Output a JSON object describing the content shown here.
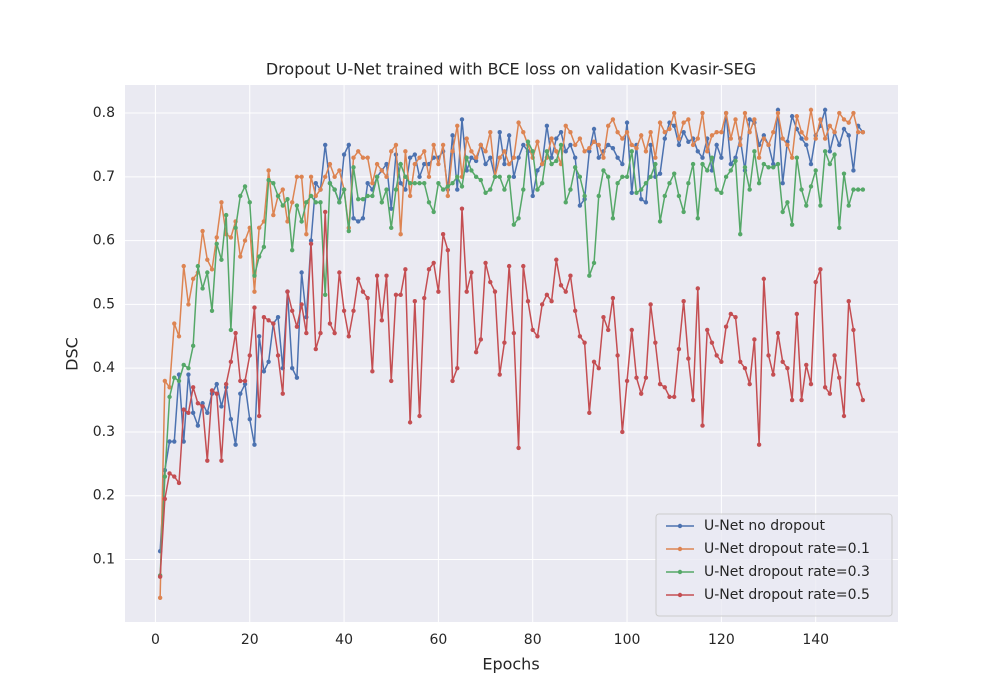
{
  "chart_data": {
    "type": "line",
    "title": "Dropout U-Net trained with BCE loss on validation Kvasir-SEG",
    "x_label": "Epochs",
    "y_label": "DSC",
    "x": [
      1,
      2,
      3,
      4,
      5,
      6,
      7,
      8,
      9,
      10,
      11,
      12,
      13,
      14,
      15,
      16,
      17,
      18,
      19,
      20,
      21,
      22,
      23,
      24,
      25,
      26,
      27,
      28,
      29,
      30,
      31,
      32,
      33,
      34,
      35,
      36,
      37,
      38,
      39,
      40,
      41,
      42,
      43,
      44,
      45,
      46,
      47,
      48,
      49,
      50,
      51,
      52,
      53,
      54,
      55,
      56,
      57,
      58,
      59,
      60,
      61,
      62,
      63,
      64,
      65,
      66,
      67,
      68,
      69,
      70,
      71,
      72,
      73,
      74,
      75,
      76,
      77,
      78,
      79,
      80,
      81,
      82,
      83,
      84,
      85,
      86,
      87,
      88,
      89,
      90,
      91,
      92,
      93,
      94,
      95,
      96,
      97,
      98,
      99,
      100,
      101,
      102,
      103,
      104,
      105,
      106,
      107,
      108,
      109,
      110,
      111,
      112,
      113,
      114,
      115,
      116,
      117,
      118,
      119,
      120,
      121,
      122,
      123,
      124,
      125,
      126,
      127,
      128,
      129,
      130,
      131,
      132,
      133,
      134,
      135,
      136,
      137,
      138,
      139,
      140,
      141,
      142,
      143,
      144,
      145,
      146,
      147,
      148,
      149,
      150
    ],
    "series": [
      {
        "name": "U-Net no dropout",
        "color": "#4c72b0",
        "values": [
          0.113,
          0.24,
          0.285,
          0.285,
          0.39,
          0.285,
          0.39,
          0.33,
          0.31,
          0.345,
          0.33,
          0.36,
          0.375,
          0.34,
          0.37,
          0.32,
          0.28,
          0.36,
          0.375,
          0.32,
          0.28,
          0.45,
          0.395,
          0.41,
          0.47,
          0.48,
          0.4,
          0.52,
          0.4,
          0.385,
          0.55,
          0.48,
          0.6,
          0.69,
          0.68,
          0.75,
          0.69,
          0.68,
          0.66,
          0.735,
          0.75,
          0.635,
          0.63,
          0.635,
          0.69,
          0.68,
          0.7,
          0.71,
          0.72,
          0.65,
          0.735,
          0.69,
          0.68,
          0.73,
          0.735,
          0.7,
          0.72,
          0.72,
          0.73,
          0.73,
          0.74,
          0.68,
          0.765,
          0.68,
          0.79,
          0.71,
          0.73,
          0.725,
          0.75,
          0.72,
          0.73,
          0.7,
          0.77,
          0.72,
          0.765,
          0.7,
          0.73,
          0.75,
          0.74,
          0.67,
          0.71,
          0.72,
          0.78,
          0.73,
          0.76,
          0.77,
          0.74,
          0.75,
          0.73,
          0.655,
          0.665,
          0.74,
          0.775,
          0.73,
          0.74,
          0.75,
          0.745,
          0.73,
          0.72,
          0.785,
          0.675,
          0.75,
          0.665,
          0.66,
          0.75,
          0.7,
          0.705,
          0.76,
          0.785,
          0.78,
          0.75,
          0.77,
          0.755,
          0.76,
          0.74,
          0.73,
          0.76,
          0.71,
          0.75,
          0.73,
          0.8,
          0.72,
          0.73,
          0.76,
          0.71,
          0.79,
          0.785,
          0.75,
          0.765,
          0.75,
          0.72,
          0.805,
          0.69,
          0.755,
          0.795,
          0.775,
          0.76,
          0.75,
          0.72,
          0.765,
          0.78,
          0.805,
          0.74,
          0.77,
          0.75,
          0.775,
          0.765,
          0.71,
          0.78,
          0.77
        ]
      },
      {
        "name": "U-Net dropout rate=0.1",
        "color": "#dd8452",
        "values": [
          0.04,
          0.38,
          0.37,
          0.47,
          0.45,
          0.56,
          0.5,
          0.54,
          0.55,
          0.615,
          0.57,
          0.555,
          0.605,
          0.66,
          0.61,
          0.605,
          0.63,
          0.575,
          0.6,
          0.62,
          0.52,
          0.62,
          0.63,
          0.71,
          0.64,
          0.67,
          0.68,
          0.63,
          0.66,
          0.7,
          0.7,
          0.61,
          0.7,
          0.67,
          0.68,
          0.7,
          0.72,
          0.7,
          0.71,
          0.68,
          0.62,
          0.73,
          0.74,
          0.73,
          0.73,
          0.69,
          0.72,
          0.71,
          0.7,
          0.74,
          0.75,
          0.61,
          0.74,
          0.67,
          0.72,
          0.73,
          0.74,
          0.7,
          0.75,
          0.72,
          0.75,
          0.67,
          0.74,
          0.78,
          0.7,
          0.76,
          0.74,
          0.73,
          0.75,
          0.74,
          0.77,
          0.7,
          0.73,
          0.74,
          0.72,
          0.73,
          0.785,
          0.77,
          0.75,
          0.73,
          0.755,
          0.72,
          0.73,
          0.76,
          0.74,
          0.72,
          0.78,
          0.77,
          0.75,
          0.76,
          0.74,
          0.745,
          0.755,
          0.75,
          0.73,
          0.78,
          0.79,
          0.77,
          0.76,
          0.77,
          0.75,
          0.745,
          0.765,
          0.74,
          0.77,
          0.73,
          0.785,
          0.77,
          0.775,
          0.8,
          0.76,
          0.785,
          0.79,
          0.75,
          0.76,
          0.8,
          0.74,
          0.765,
          0.77,
          0.77,
          0.8,
          0.76,
          0.79,
          0.75,
          0.8,
          0.77,
          0.79,
          0.73,
          0.76,
          0.75,
          0.77,
          0.8,
          0.76,
          0.75,
          0.73,
          0.795,
          0.77,
          0.76,
          0.805,
          0.76,
          0.79,
          0.76,
          0.78,
          0.77,
          0.8,
          0.79,
          0.785,
          0.8,
          0.77,
          0.77
        ]
      },
      {
        "name": "U-Net dropout rate=0.3",
        "color": "#55a868",
        "values": [
          0.075,
          0.23,
          0.355,
          0.385,
          0.38,
          0.405,
          0.4,
          0.435,
          0.56,
          0.525,
          0.55,
          0.49,
          0.595,
          0.57,
          0.64,
          0.46,
          0.62,
          0.67,
          0.685,
          0.66,
          0.545,
          0.575,
          0.59,
          0.695,
          0.69,
          0.67,
          0.655,
          0.665,
          0.585,
          0.655,
          0.63,
          0.66,
          0.67,
          0.66,
          0.66,
          0.515,
          0.69,
          0.68,
          0.66,
          0.68,
          0.615,
          0.715,
          0.665,
          0.665,
          0.67,
          0.67,
          0.7,
          0.66,
          0.68,
          0.62,
          0.68,
          0.72,
          0.7,
          0.69,
          0.69,
          0.69,
          0.69,
          0.66,
          0.645,
          0.69,
          0.68,
          0.685,
          0.69,
          0.7,
          0.685,
          0.73,
          0.71,
          0.7,
          0.695,
          0.675,
          0.68,
          0.7,
          0.7,
          0.68,
          0.7,
          0.625,
          0.635,
          0.68,
          0.755,
          0.74,
          0.68,
          0.69,
          0.74,
          0.72,
          0.725,
          0.75,
          0.66,
          0.68,
          0.715,
          0.7,
          0.67,
          0.545,
          0.565,
          0.67,
          0.71,
          0.7,
          0.635,
          0.69,
          0.7,
          0.7,
          0.74,
          0.675,
          0.68,
          0.69,
          0.7,
          0.72,
          0.63,
          0.67,
          0.69,
          0.705,
          0.67,
          0.645,
          0.69,
          0.72,
          0.635,
          0.72,
          0.71,
          0.73,
          0.68,
          0.675,
          0.7,
          0.71,
          0.725,
          0.61,
          0.715,
          0.68,
          0.74,
          0.69,
          0.72,
          0.715,
          0.715,
          0.72,
          0.645,
          0.66,
          0.625,
          0.73,
          0.68,
          0.655,
          0.685,
          0.71,
          0.655,
          0.74,
          0.72,
          0.735,
          0.62,
          0.705,
          0.655,
          0.68,
          0.68,
          0.68
        ]
      },
      {
        "name": "U-Net dropout rate=0.5",
        "color": "#c44e52",
        "values": [
          0.073,
          0.195,
          0.235,
          0.23,
          0.22,
          0.335,
          0.33,
          0.37,
          0.345,
          0.34,
          0.255,
          0.365,
          0.36,
          0.255,
          0.375,
          0.41,
          0.455,
          0.38,
          0.38,
          0.42,
          0.495,
          0.325,
          0.48,
          0.475,
          0.47,
          0.42,
          0.36,
          0.52,
          0.49,
          0.465,
          0.5,
          0.455,
          0.595,
          0.43,
          0.455,
          0.645,
          0.47,
          0.455,
          0.55,
          0.49,
          0.45,
          0.49,
          0.54,
          0.52,
          0.51,
          0.395,
          0.545,
          0.475,
          0.545,
          0.38,
          0.515,
          0.515,
          0.555,
          0.315,
          0.505,
          0.325,
          0.51,
          0.555,
          0.565,
          0.52,
          0.61,
          0.585,
          0.38,
          0.4,
          0.65,
          0.52,
          0.55,
          0.425,
          0.445,
          0.565,
          0.535,
          0.52,
          0.39,
          0.44,
          0.56,
          0.455,
          0.275,
          0.56,
          0.505,
          0.46,
          0.45,
          0.5,
          0.515,
          0.505,
          0.57,
          0.53,
          0.52,
          0.545,
          0.49,
          0.45,
          0.44,
          0.33,
          0.41,
          0.4,
          0.48,
          0.46,
          0.51,
          0.42,
          0.3,
          0.38,
          0.46,
          0.385,
          0.36,
          0.385,
          0.5,
          0.44,
          0.375,
          0.37,
          0.355,
          0.355,
          0.43,
          0.505,
          0.415,
          0.35,
          0.525,
          0.31,
          0.46,
          0.44,
          0.42,
          0.41,
          0.465,
          0.485,
          0.48,
          0.41,
          0.4,
          0.375,
          0.445,
          0.28,
          0.54,
          0.42,
          0.39,
          0.455,
          0.41,
          0.4,
          0.35,
          0.485,
          0.35,
          0.405,
          0.375,
          0.535,
          0.555,
          0.37,
          0.36,
          0.42,
          0.385,
          0.325,
          0.505,
          0.46,
          0.375,
          0.35
        ]
      }
    ],
    "xlim": [
      -6.45,
      157.45
    ],
    "ylim": [
      0.002,
      0.844
    ],
    "xticks": [
      0,
      20,
      40,
      60,
      80,
      100,
      120,
      140
    ],
    "yticks": [
      0.1,
      0.2,
      0.3,
      0.4,
      0.5,
      0.6,
      0.7,
      0.8
    ],
    "grid": true,
    "legend": "lower right"
  }
}
